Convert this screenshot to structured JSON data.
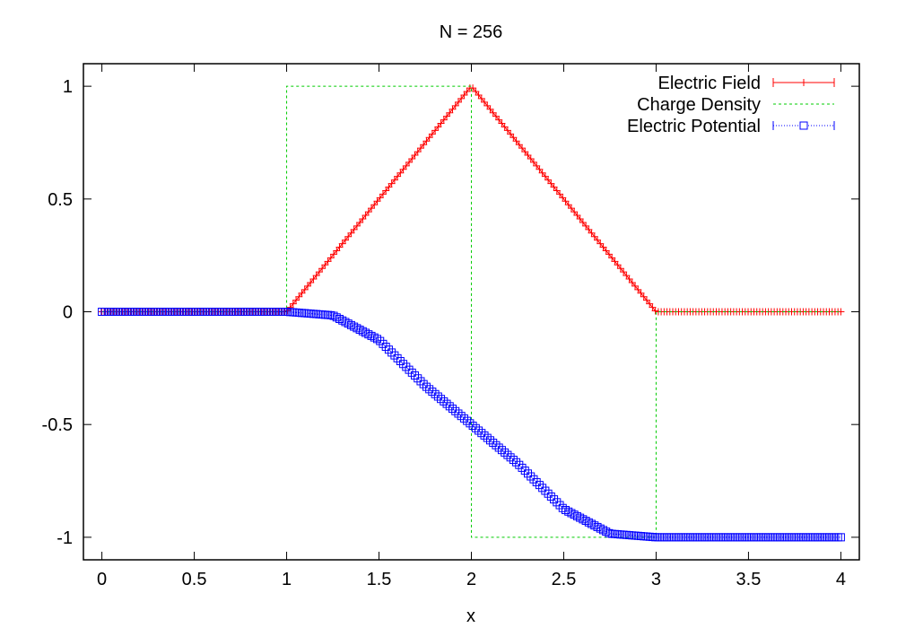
{
  "chart_data": {
    "type": "line",
    "title": "N = 256",
    "xlabel": "x",
    "ylabel": "",
    "xlim": [
      -0.1,
      4.1
    ],
    "ylim": [
      -1.1,
      1.1
    ],
    "xticks": [
      0,
      0.5,
      1,
      1.5,
      2,
      2.5,
      3,
      3.5,
      4
    ],
    "xtick_labels": [
      "0",
      "0.5",
      "1",
      "1.5",
      "2",
      "2.5",
      "3",
      "3.5",
      "4"
    ],
    "yticks": [
      -1,
      -0.5,
      0,
      0.5,
      1
    ],
    "ytick_labels": [
      "-1",
      "-0.5",
      "0",
      "0.5",
      "1"
    ],
    "grid": false,
    "legend_position": "top-right",
    "n_points": 256,
    "series": [
      {
        "name": "Electric Field",
        "color": "#ff0000",
        "style": "line-with-plus-markers",
        "x": [
          0,
          1,
          2,
          3,
          4
        ],
        "y": [
          0,
          0,
          1,
          0,
          0
        ]
      },
      {
        "name": "Charge Density",
        "color": "#00cc00",
        "style": "dashed-line",
        "x": [
          0,
          1,
          1,
          2,
          2,
          3,
          3,
          4
        ],
        "y": [
          0,
          0,
          1,
          1,
          -1,
          -1,
          0,
          0
        ]
      },
      {
        "name": "Electric Potential",
        "color": "#0000ff",
        "style": "dotted-line-with-square-markers",
        "x": [
          0,
          1,
          1.25,
          1.5,
          1.75,
          2,
          2.25,
          2.5,
          2.75,
          3,
          4
        ],
        "y": [
          0,
          0,
          -0.016,
          -0.125,
          -0.328,
          -0.5,
          -0.672,
          -0.875,
          -0.984,
          -1,
          -1
        ]
      }
    ]
  }
}
